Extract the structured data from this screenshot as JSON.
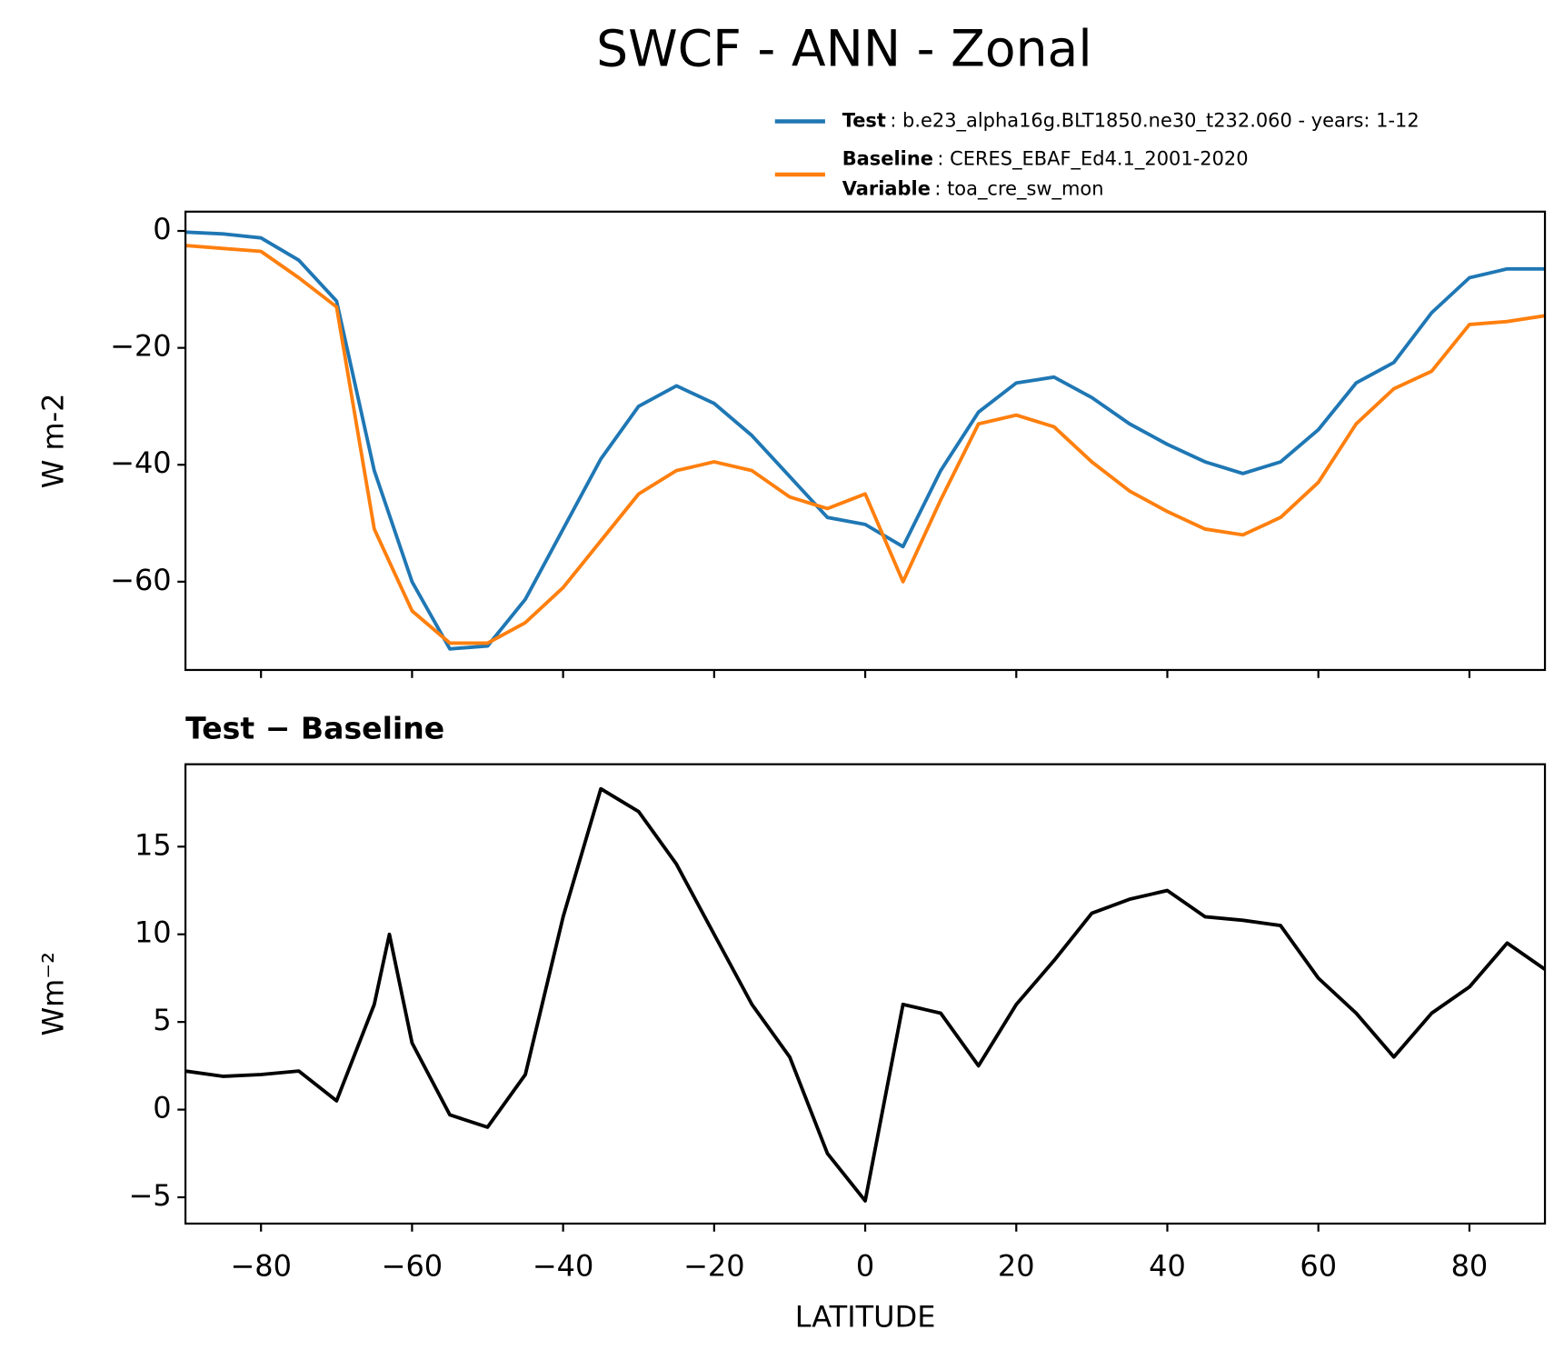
{
  "chart_data": [
    {
      "type": "line",
      "title": "SWCF - ANN - Zonal",
      "ylabel": "W m-2",
      "x": [
        -90,
        -85,
        -80,
        -75,
        -70,
        -65,
        -60,
        -55,
        -50,
        -45,
        -40,
        -35,
        -30,
        -25,
        -20,
        -15,
        -10,
        -5,
        0,
        5,
        10,
        15,
        20,
        25,
        30,
        35,
        40,
        45,
        50,
        55,
        60,
        65,
        70,
        75,
        80,
        85,
        90
      ],
      "series": [
        {
          "name": "Test",
          "details": [
            {
              "label": "Test",
              "text": ": b.e23_alpha16g.BLT1850.ne30_t232.060 - years: 1-12"
            }
          ],
          "color": "#1f77b4",
          "values": [
            -0.2,
            -0.5,
            -1.2,
            -5,
            -12,
            -41,
            -60,
            -71.5,
            -71,
            -63,
            -51,
            -39,
            -30,
            -26.5,
            -29.5,
            -35,
            -42,
            -49,
            -50.2,
            -54,
            -41,
            -31,
            -26,
            -25,
            -28.5,
            -33,
            -36.5,
            -39.5,
            -41.5,
            -39.5,
            -34,
            -26,
            -22.5,
            -14,
            -8,
            -6.5,
            -6.5
          ]
        },
        {
          "name": "Baseline",
          "details": [
            {
              "label": "Baseline",
              "text": ": CERES_EBAF_Ed4.1_2001-2020"
            },
            {
              "label": "Variable",
              "text": ": toa_cre_sw_mon"
            }
          ],
          "color": "#ff7f0e",
          "values": [
            -2.5,
            -3,
            -3.5,
            -8,
            -13,
            -51,
            -65,
            -70.5,
            -70.5,
            -67,
            -61,
            -53,
            -45,
            -41,
            -39.5,
            -41,
            -45.5,
            -47.5,
            -45,
            -60,
            -46,
            -33,
            -31.5,
            -33.5,
            -39.5,
            -44.5,
            -48,
            -51,
            -52,
            -49,
            -43,
            -33,
            -27,
            -24,
            -16,
            -15.5,
            -14.5
          ]
        }
      ],
      "xlim": [
        -90,
        90
      ],
      "xticks": [
        -80,
        -60,
        -40,
        -20,
        0,
        20,
        40,
        60,
        80
      ],
      "ylim": [
        -75.1,
        3.3
      ],
      "yticks": [
        {
          "value": -60,
          "label": "−60"
        },
        {
          "value": -40,
          "label": "−40"
        },
        {
          "value": -20,
          "label": "−20"
        },
        0
      ]
    },
    {
      "type": "line",
      "title": "Test − Baseline",
      "ylabel": "Wm⁻²",
      "xlabel": "LATITUDE",
      "x": [
        -90,
        -85,
        -80,
        -75,
        -70,
        -65,
        -63,
        -60,
        -55,
        -50,
        -45,
        -40,
        -35,
        -30,
        -25,
        -20,
        -15,
        -10,
        -5,
        0,
        5,
        10,
        15,
        20,
        25,
        30,
        35,
        40,
        45,
        50,
        55,
        60,
        65,
        70,
        75,
        80,
        85,
        90
      ],
      "series": [
        {
          "name": "Test − Baseline",
          "color": "#000000",
          "values": [
            2.2,
            1.9,
            2.0,
            2.2,
            0.5,
            6,
            10,
            3.8,
            -0.3,
            -1.0,
            2,
            11,
            18.3,
            17,
            14,
            10,
            6,
            3,
            -2.5,
            -5.2,
            6,
            5.5,
            2.5,
            6,
            8.5,
            11.2,
            12,
            12.5,
            11,
            10.8,
            10.5,
            7.5,
            5.5,
            3,
            5.5,
            7,
            9.5,
            8
          ]
        }
      ],
      "xlim": [
        -90,
        90
      ],
      "xticks": [
        {
          "value": -80,
          "label": "−80"
        },
        {
          "value": -60,
          "label": "−60"
        },
        {
          "value": -40,
          "label": "−40"
        },
        {
          "value": -20,
          "label": "−20"
        },
        0,
        20,
        40,
        60,
        80
      ],
      "ylim": [
        -6.5,
        19.7
      ],
      "yticks": [
        {
          "value": -5,
          "label": "−5"
        },
        0,
        5,
        10,
        15
      ]
    }
  ]
}
